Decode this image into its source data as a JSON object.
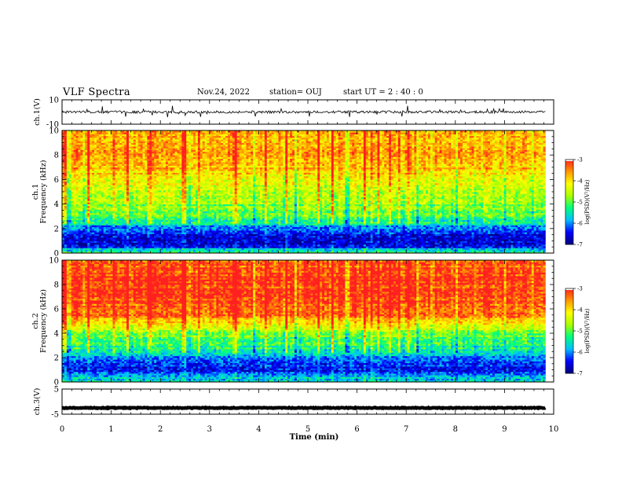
{
  "header": {
    "title": "VLF Spectra",
    "date": "Nov.24, 2022",
    "station": "station= OUJ",
    "start": "start  UT =  2 : 40 : 0"
  },
  "chart_data": {
    "type": "heatmap",
    "xlabel": "Time (min)",
    "xlim": [
      0,
      10
    ],
    "x_ticks": [
      "0",
      "1",
      "2",
      "3",
      "4",
      "5",
      "6",
      "7",
      "8",
      "9",
      "10"
    ],
    "data_end_min": 9.83,
    "panels": [
      {
        "id": "ch1-waveform",
        "type": "line",
        "ylabel": "ch.1(V)",
        "ylim": [
          -10,
          10
        ],
        "y_ticks": [
          "10",
          "-10"
        ],
        "baseline": 0,
        "noise_amp": 1.0,
        "color": "#000000"
      },
      {
        "id": "ch1-spectrogram",
        "type": "heatmap",
        "ylabel": [
          "ch.1",
          "Frequency (kHz)"
        ],
        "ylim": [
          0,
          10
        ],
        "y_ticks": [
          "0",
          "2",
          "4",
          "6",
          "8",
          "10"
        ],
        "level_profile": [
          {
            "f": 0.0,
            "v": -5.2
          },
          {
            "f": 0.3,
            "v": -5.6
          },
          {
            "f": 0.6,
            "v": -6.6
          },
          {
            "f": 1.0,
            "v": -6.7
          },
          {
            "f": 1.5,
            "v": -6.5
          },
          {
            "f": 2.0,
            "v": -6.2
          },
          {
            "f": 2.5,
            "v": -5.4
          },
          {
            "f": 3.0,
            "v": -5.0
          },
          {
            "f": 4.0,
            "v": -4.8
          },
          {
            "f": 5.0,
            "v": -4.6
          },
          {
            "f": 6.0,
            "v": -4.2
          },
          {
            "f": 7.0,
            "v": -3.8
          },
          {
            "f": 8.0,
            "v": -3.6
          },
          {
            "f": 9.0,
            "v": -3.7
          },
          {
            "f": 10.0,
            "v": -3.8
          }
        ],
        "colorbar": {
          "label": "log(PSD)(V²/Hz)",
          "range": [
            -7,
            -3
          ],
          "ticks": [
            "-3",
            "-4",
            "-5",
            "-6",
            "-7"
          ]
        }
      },
      {
        "id": "ch2-spectrogram",
        "type": "heatmap",
        "ylabel": [
          "ch.2",
          "Frequency (kHz)"
        ],
        "ylim": [
          0,
          10
        ],
        "y_ticks": [
          "0",
          "2",
          "4",
          "6",
          "8",
          "10"
        ],
        "level_profile": [
          {
            "f": 0.0,
            "v": -5.4
          },
          {
            "f": 0.5,
            "v": -6.0
          },
          {
            "f": 1.0,
            "v": -6.4
          },
          {
            "f": 1.5,
            "v": -6.3
          },
          {
            "f": 2.0,
            "v": -6.0
          },
          {
            "f": 2.5,
            "v": -5.5
          },
          {
            "f": 3.0,
            "v": -5.3
          },
          {
            "f": 3.5,
            "v": -5.1
          },
          {
            "f": 4.0,
            "v": -4.8
          },
          {
            "f": 4.8,
            "v": -4.2
          },
          {
            "f": 5.5,
            "v": -3.4
          },
          {
            "f": 7.0,
            "v": -3.1
          },
          {
            "f": 8.5,
            "v": -3.1
          },
          {
            "f": 10.0,
            "v": -3.3
          }
        ],
        "colorbar": {
          "label": "log(PSD)(V²/Hz)",
          "range": [
            -7,
            -3
          ],
          "ticks": [
            "-3",
            "-4",
            "-5",
            "-6",
            "-7"
          ]
        }
      },
      {
        "id": "ch3-waveform",
        "type": "line",
        "ylabel": "ch.3(V)",
        "ylim": [
          -5,
          5
        ],
        "y_ticks": [
          "5",
          "-5"
        ],
        "baseline": -2.5,
        "noise_amp": 0.15,
        "color": "#000000"
      }
    ]
  },
  "colors": {
    "colormap": [
      "#00007f",
      "#0000ff",
      "#00bfff",
      "#00ff7f",
      "#aaff00",
      "#ffff00",
      "#ff9900",
      "#ff2020",
      "#ffffff"
    ],
    "axis": "#000000"
  }
}
